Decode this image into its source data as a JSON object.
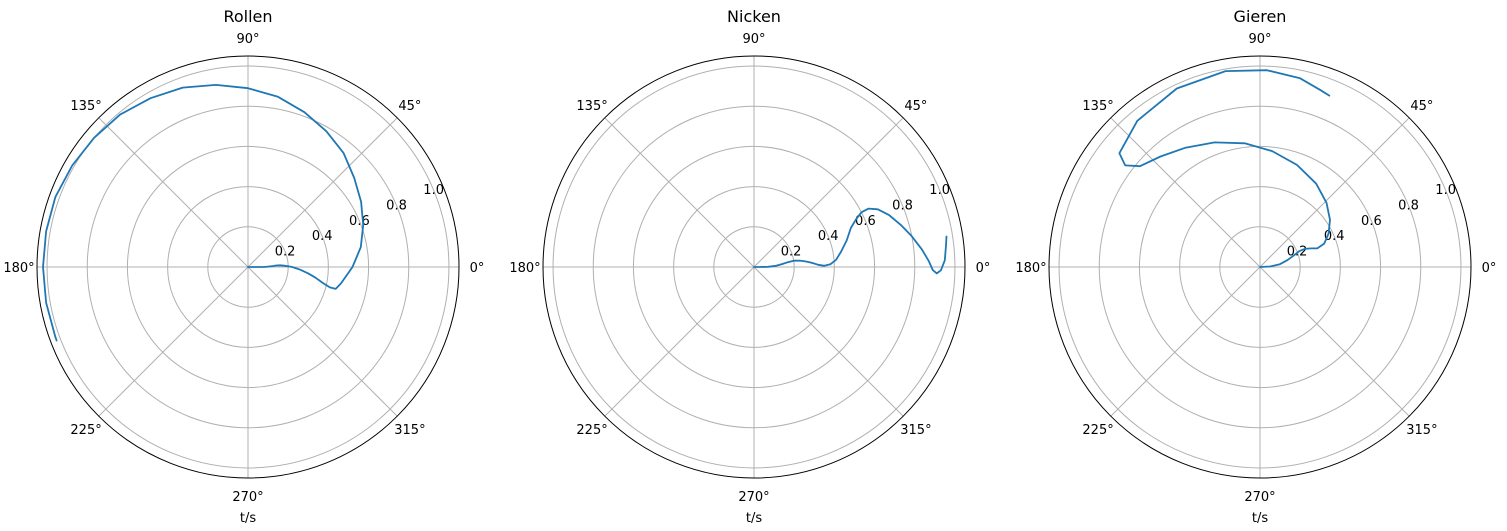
{
  "chart_data": [
    {
      "type": "polar-line",
      "title": "Rollen",
      "xlabel": "t/s",
      "angle_ticks": [
        "0°",
        "45°",
        "90°",
        "135°",
        "180°",
        "225°",
        "270°",
        "315°"
      ],
      "radial_ticks": [
        "0.2",
        "0.4",
        "0.6",
        "0.8",
        "1.0"
      ],
      "rlim": [
        0,
        1.05
      ],
      "grid": true,
      "color": "#1f77b4",
      "series": [
        {
          "theta_deg": [
            0,
            0,
            0,
            0,
            1,
            2,
            3,
            3,
            2,
            1,
            0,
            -3,
            -6,
            -9,
            -12,
            -14,
            -14,
            -10,
            0,
            10,
            20,
            30,
            40,
            50,
            60,
            70,
            80,
            90,
            100,
            110,
            120,
            130,
            140,
            150,
            160,
            170,
            180,
            190,
            200,
            201
          ],
          "r": [
            0,
            0.02,
            0.05,
            0.08,
            0.1,
            0.12,
            0.14,
            0.16,
            0.18,
            0.2,
            0.22,
            0.26,
            0.3,
            0.34,
            0.38,
            0.42,
            0.45,
            0.47,
            0.52,
            0.57,
            0.61,
            0.65,
            0.69,
            0.74,
            0.78,
            0.82,
            0.86,
            0.89,
            0.92,
            0.95,
            0.97,
            0.99,
            1.0,
            1.01,
            1.02,
            1.02,
            1.02,
            1.02,
            1.02,
            1.02
          ]
        }
      ]
    },
    {
      "type": "polar-line",
      "title": "Nicken",
      "xlabel": "t/s",
      "angle_ticks": [
        "0°",
        "45°",
        "90°",
        "135°",
        "180°",
        "225°",
        "270°",
        "315°"
      ],
      "radial_ticks": [
        "0.2",
        "0.4",
        "0.6",
        "0.8",
        "1.0"
      ],
      "rlim": [
        0,
        1.05
      ],
      "grid": true,
      "color": "#1f77b4",
      "series": [
        {
          "theta_deg": [
            0,
            0,
            1,
            3,
            6,
            8,
            9,
            8,
            6,
            4,
            2,
            1,
            2,
            5,
            10,
            16,
            22,
            25,
            27,
            27,
            25,
            21,
            16,
            11,
            6,
            2,
            -1,
            -2,
            -1,
            2,
            6,
            9
          ],
          "r": [
            0,
            0.03,
            0.07,
            0.11,
            0.14,
            0.17,
            0.2,
            0.23,
            0.26,
            0.29,
            0.32,
            0.35,
            0.38,
            0.41,
            0.44,
            0.48,
            0.52,
            0.56,
            0.6,
            0.64,
            0.68,
            0.72,
            0.76,
            0.8,
            0.84,
            0.87,
            0.89,
            0.91,
            0.93,
            0.95,
            0.96,
            0.97
          ]
        }
      ]
    },
    {
      "type": "polar-line",
      "title": "Gieren",
      "xlabel": "t/s",
      "angle_ticks": [
        "0°",
        "45°",
        "90°",
        "135°",
        "180°",
        "225°",
        "270°",
        "315°"
      ],
      "radial_ticks": [
        "0.2",
        "0.4",
        "0.6",
        "0.8",
        "1.0"
      ],
      "rlim": [
        0,
        1.05
      ],
      "grid": true,
      "color": "#1f77b4",
      "series": [
        {
          "theta_deg": [
            0,
            3,
            8,
            14,
            19,
            22,
            22,
            20,
            18,
            20,
            26,
            34,
            44,
            56,
            70,
            84,
            97,
            110,
            122,
            132,
            140,
            143,
            141,
            130,
            115,
            100,
            88,
            78,
            71,
            68
          ],
          "r": [
            0,
            0.05,
            0.1,
            0.14,
            0.18,
            0.21,
            0.24,
            0.27,
            0.3,
            0.34,
            0.38,
            0.42,
            0.46,
            0.5,
            0.54,
            0.58,
            0.62,
            0.66,
            0.7,
            0.74,
            0.78,
            0.84,
            0.9,
            0.95,
            0.98,
            0.99,
            0.98,
            0.96,
            0.93,
            0.92
          ]
        }
      ]
    }
  ]
}
